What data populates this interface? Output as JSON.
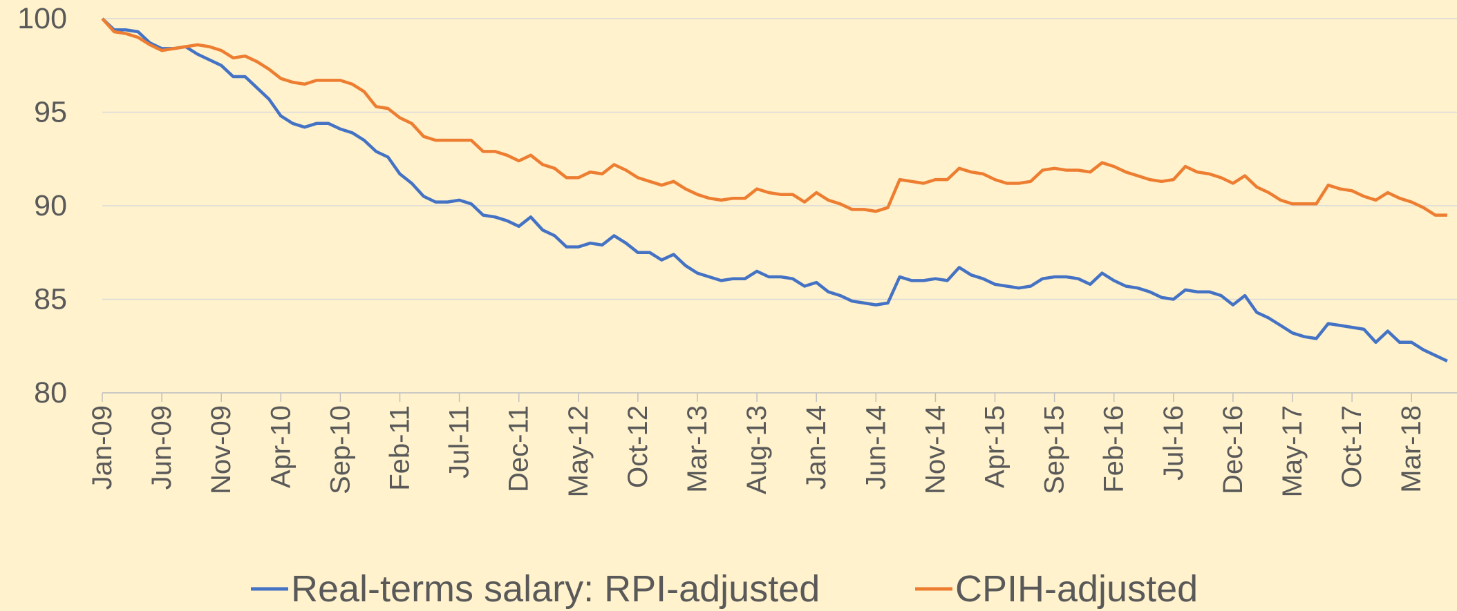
{
  "chart_data": {
    "type": "line",
    "categories": [
      "Jan-09",
      null,
      null,
      null,
      null,
      "Jun-09",
      null,
      null,
      null,
      null,
      "Nov-09",
      null,
      null,
      null,
      null,
      "Apr-10",
      null,
      null,
      null,
      null,
      "Sep-10",
      null,
      null,
      null,
      null,
      "Feb-11",
      null,
      null,
      null,
      null,
      "Jul-11",
      null,
      null,
      null,
      null,
      "Dec-11",
      null,
      null,
      null,
      null,
      "May-12",
      null,
      null,
      null,
      null,
      "Oct-12",
      null,
      null,
      null,
      null,
      "Mar-13",
      null,
      null,
      null,
      null,
      "Aug-13",
      null,
      null,
      null,
      null,
      "Jan-14",
      null,
      null,
      null,
      null,
      "Jun-14",
      null,
      null,
      null,
      null,
      "Nov-14",
      null,
      null,
      null,
      null,
      "Apr-15",
      null,
      null,
      null,
      null,
      "Sep-15",
      null,
      null,
      null,
      null,
      "Feb-16",
      null,
      null,
      null,
      null,
      "Jul-16",
      null,
      null,
      null,
      null,
      "Dec-16",
      null,
      null,
      null,
      null,
      "May-17",
      null,
      null,
      null,
      null,
      "Oct-17",
      null,
      null,
      null,
      null,
      "Mar-18",
      null,
      null,
      null
    ],
    "series": [
      {
        "name": "Real-terms salary: RPI-adjusted",
        "color": "#4472c4",
        "values": [
          100,
          99.4,
          99.4,
          99.3,
          98.7,
          98.4,
          98.4,
          98.5,
          98.1,
          97.8,
          97.5,
          96.9,
          96.9,
          96.3,
          95.7,
          94.8,
          94.4,
          94.2,
          94.4,
          94.4,
          94.1,
          93.9,
          93.5,
          92.9,
          92.6,
          91.7,
          91.2,
          90.5,
          90.2,
          90.2,
          90.3,
          90.1,
          89.5,
          89.4,
          89.2,
          88.9,
          89.4,
          88.7,
          88.4,
          87.8,
          87.8,
          88.0,
          87.9,
          88.4,
          88.0,
          87.5,
          87.5,
          87.1,
          87.4,
          86.8,
          86.4,
          86.2,
          86.0,
          86.1,
          86.1,
          86.5,
          86.2,
          86.2,
          86.1,
          85.7,
          85.9,
          85.4,
          85.2,
          84.9,
          84.8,
          84.7,
          84.8,
          86.2,
          86.0,
          86.0,
          86.1,
          86.0,
          86.7,
          86.3,
          86.1,
          85.8,
          85.7,
          85.6,
          85.7,
          86.1,
          86.2,
          86.2,
          86.1,
          85.8,
          86.4,
          86.0,
          85.7,
          85.6,
          85.4,
          85.1,
          85.0,
          85.5,
          85.4,
          85.4,
          85.2,
          84.7,
          85.2,
          84.3,
          84.0,
          83.6,
          83.2,
          83.0,
          82.9,
          83.7,
          83.6,
          83.5,
          83.4,
          82.7,
          83.3,
          82.7,
          82.7,
          82.3,
          82.0,
          81.7
        ]
      },
      {
        "name": "CPIH-adjusted",
        "color": "#ed7d31",
        "values": [
          100,
          99.3,
          99.2,
          99.0,
          98.6,
          98.3,
          98.4,
          98.5,
          98.6,
          98.5,
          98.3,
          97.9,
          98.0,
          97.7,
          97.3,
          96.8,
          96.6,
          96.5,
          96.7,
          96.7,
          96.7,
          96.5,
          96.1,
          95.3,
          95.2,
          94.7,
          94.4,
          93.7,
          93.5,
          93.5,
          93.5,
          93.5,
          92.9,
          92.9,
          92.7,
          92.4,
          92.7,
          92.2,
          92.0,
          91.5,
          91.5,
          91.8,
          91.7,
          92.2,
          91.9,
          91.5,
          91.3,
          91.1,
          91.3,
          90.9,
          90.6,
          90.4,
          90.3,
          90.4,
          90.4,
          90.9,
          90.7,
          90.6,
          90.6,
          90.2,
          90.7,
          90.3,
          90.1,
          89.8,
          89.8,
          89.7,
          89.9,
          91.4,
          91.3,
          91.2,
          91.4,
          91.4,
          92.0,
          91.8,
          91.7,
          91.4,
          91.2,
          91.2,
          91.3,
          91.9,
          92.0,
          91.9,
          91.9,
          91.8,
          92.3,
          92.1,
          91.8,
          91.6,
          91.4,
          91.3,
          91.4,
          92.1,
          91.8,
          91.7,
          91.5,
          91.2,
          91.6,
          91.0,
          90.7,
          90.3,
          90.1,
          90.1,
          90.1,
          91.1,
          90.9,
          90.8,
          90.5,
          90.3,
          90.7,
          90.4,
          90.2,
          89.9,
          89.5,
          89.5
        ]
      }
    ],
    "ylim": [
      80,
      100
    ],
    "yticks": [
      80,
      85,
      90,
      95,
      100
    ],
    "grid": true,
    "legend": "bottom"
  }
}
